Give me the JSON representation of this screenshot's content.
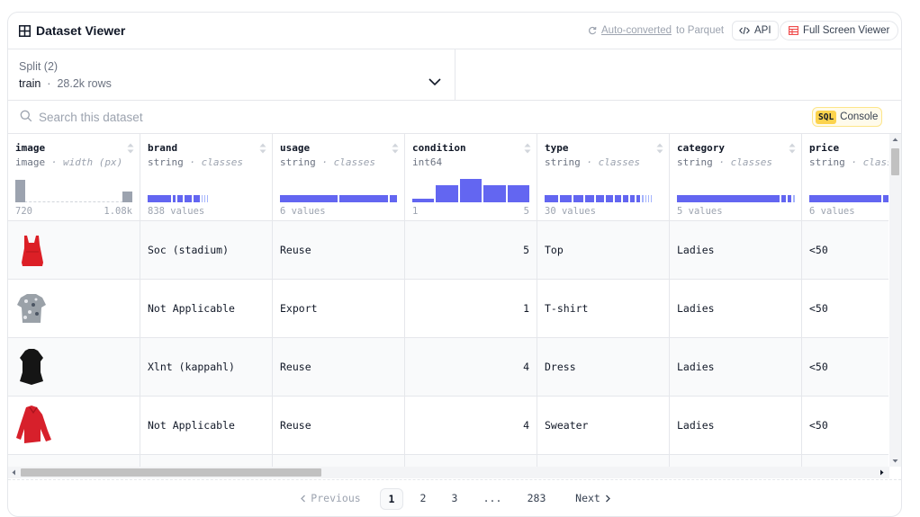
{
  "header": {
    "title": "Dataset Viewer",
    "auto_converted_link": "Auto-converted",
    "auto_converted_suffix": "to Parquet",
    "api_label": "API",
    "full_screen_label": "Full Screen Viewer"
  },
  "split": {
    "label": "Split (2)",
    "value": "train",
    "separator": "·",
    "rows": "28.2k rows"
  },
  "search": {
    "placeholder": "Search this dataset",
    "sql_tag": "SQL",
    "console_label": "Console"
  },
  "columns": [
    {
      "name": "image",
      "dtype": "image",
      "dtype_extra": "· width (px)",
      "foot_left": "720",
      "foot_right": "1.08k"
    },
    {
      "name": "brand",
      "dtype": "string",
      "dtype_extra": "· classes",
      "foot_left": "838 values"
    },
    {
      "name": "usage",
      "dtype": "string",
      "dtype_extra": "· classes",
      "foot_left": "6 values"
    },
    {
      "name": "condition",
      "dtype": "int64",
      "dtype_extra": "",
      "foot_left": "1",
      "foot_right": "5"
    },
    {
      "name": "type",
      "dtype": "string",
      "dtype_extra": "· classes",
      "foot_left": "30 values"
    },
    {
      "name": "category",
      "dtype": "string",
      "dtype_extra": "· classes",
      "foot_left": "5 values"
    },
    {
      "name": "price",
      "dtype": "string",
      "dtype_extra": "· classes",
      "foot_left": "6 values"
    }
  ],
  "condition_histogram": [
    0.15,
    0.75,
    1.0,
    0.75,
    0.75
  ],
  "image_histogram": [
    0.95,
    0.45
  ],
  "rows": [
    {
      "image": "red-tank-top",
      "brand": "Soc (stadium)",
      "usage": "Reuse",
      "condition": "5",
      "type": "Top",
      "category": "Ladies",
      "price": "<50"
    },
    {
      "image": "patterned-tshirt",
      "brand": "Not Applicable",
      "usage": "Export",
      "condition": "1",
      "type": "T-shirt",
      "category": "Ladies",
      "price": "<50"
    },
    {
      "image": "black-dress",
      "brand": "Xlnt (kappahl)",
      "usage": "Reuse",
      "condition": "4",
      "type": "Dress",
      "category": "Ladies",
      "price": "<50"
    },
    {
      "image": "red-sweater",
      "brand": "Not Applicable",
      "usage": "Reuse",
      "condition": "4",
      "type": "Sweater",
      "category": "Ladies",
      "price": "<50"
    }
  ],
  "pagination": {
    "previous": "Previous",
    "pages": [
      "1",
      "2",
      "3",
      "...",
      "283"
    ],
    "active_page": "1",
    "next": "Next"
  },
  "colors": {
    "accent": "#6366f1",
    "accent_light": "#a5b4fc",
    "sql_tag": "#fcd34d",
    "border": "#e5e7eb",
    "full_screen_icon": "#ef4444"
  },
  "icons": {
    "title": "table-icon",
    "auto_converted": "refresh-icon",
    "api": "code-icon",
    "full_screen": "table-icon",
    "split_toggle": "chevron-down-icon",
    "search": "search-icon",
    "sort": "sort-icon",
    "previous": "chevron-left-icon",
    "next": "chevron-right-icon"
  }
}
